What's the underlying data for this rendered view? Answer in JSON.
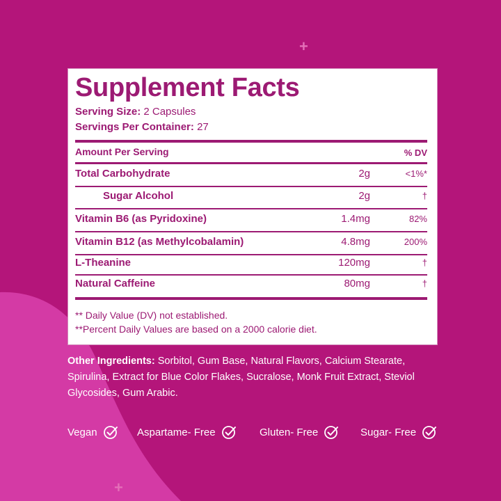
{
  "panel": {
    "title": "Supplement Facts",
    "serving_size_label": "Serving Size:",
    "serving_size_value": "2 Capsules",
    "servings_label": "Servings Per Container:",
    "servings_value": "27",
    "header_amount": "Amount Per Serving",
    "header_dv": "% DV",
    "rows": [
      {
        "name": "Total Carbohydrate",
        "amount": "2g",
        "dv": "<1%*"
      },
      {
        "name": "Sugar Alcohol",
        "amount": "2g",
        "dv": "†"
      },
      {
        "name": "Vitamin B6 (as Pyridoxine)",
        "amount": "1.4mg",
        "dv": "82%"
      },
      {
        "name": "Vitamin B12 (as Methylcobalamin)",
        "amount": "4.8mg",
        "dv": "200%"
      },
      {
        "name": "L-Theanine",
        "amount": "120mg",
        "dv": "†"
      },
      {
        "name": "Natural Caffeine",
        "amount": "80mg",
        "dv": "†"
      }
    ],
    "footnote_1": "** Daily Value (DV) not established.",
    "footnote_2": "**Percent Daily Values are based on a 2000 calorie diet."
  },
  "ingredients": {
    "label": "Other Ingredients:",
    "text": " Sorbitol, Gum Base, Natural Flavors, Calcium Stearate, Spirulina, Extract for Blue Color Flakes, Sucralose, Monk Fruit Extract, Steviol Glycosides, Gum Arabic."
  },
  "badges": [
    {
      "label": "Vegan",
      "icon": "check-circle-icon"
    },
    {
      "label": "Aspartame- Free",
      "icon": "check-circle-icon"
    },
    {
      "label": "Gluten- Free",
      "icon": "check-circle-icon"
    },
    {
      "label": "Sugar- Free",
      "icon": "check-circle-icon"
    }
  ],
  "colors": {
    "background": "#b4157a",
    "wave": "#d43aa5",
    "accent_text": "#9c1a73"
  }
}
